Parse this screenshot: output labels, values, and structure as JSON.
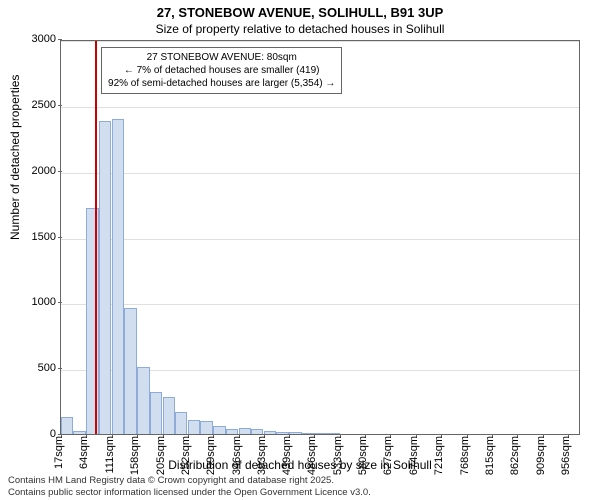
{
  "title_main": "27, STONEBOW AVENUE, SOLIHULL, B91 3UP",
  "title_sub": "Size of property relative to detached houses in Solihull",
  "y_axis_label": "Number of detached properties",
  "x_axis_label": "Distribution of detached houses by size in Solihull",
  "footer_line1": "Contains HM Land Registry data © Crown copyright and database right 2025.",
  "footer_line2": "Contains public sector information licensed under the Open Government Licence v3.0.",
  "annotation": {
    "line1": "27 STONEBOW AVENUE: 80sqm",
    "line2": "← 7% of detached houses are smaller (419)",
    "line3": "92% of semi-detached houses are larger (5,354) →"
  },
  "chart": {
    "type": "histogram",
    "ylim": [
      0,
      3000
    ],
    "ytick_step": 500,
    "yticks": [
      0,
      500,
      1000,
      1500,
      2000,
      2500,
      3000
    ],
    "x_min": 17,
    "x_max": 980,
    "xticks": [
      17,
      64,
      111,
      158,
      205,
      252,
      299,
      346,
      393,
      439,
      486,
      533,
      580,
      627,
      674,
      721,
      768,
      815,
      862,
      909,
      956
    ],
    "xtick_suffix": "sqm",
    "bars": [
      {
        "x": 17,
        "value": 130
      },
      {
        "x": 40,
        "value": 20
      },
      {
        "x": 64,
        "value": 1720
      },
      {
        "x": 87,
        "value": 2380
      },
      {
        "x": 111,
        "value": 2390
      },
      {
        "x": 134,
        "value": 960
      },
      {
        "x": 158,
        "value": 510
      },
      {
        "x": 181,
        "value": 320
      },
      {
        "x": 205,
        "value": 280
      },
      {
        "x": 228,
        "value": 170
      },
      {
        "x": 252,
        "value": 110
      },
      {
        "x": 275,
        "value": 100
      },
      {
        "x": 299,
        "value": 60
      },
      {
        "x": 322,
        "value": 40
      },
      {
        "x": 346,
        "value": 45
      },
      {
        "x": 369,
        "value": 40
      },
      {
        "x": 393,
        "value": 25
      },
      {
        "x": 416,
        "value": 15
      },
      {
        "x": 440,
        "value": 15
      },
      {
        "x": 463,
        "value": 8
      },
      {
        "x": 486,
        "value": 5
      },
      {
        "x": 510,
        "value": 5
      }
    ],
    "bar_width_sqm": 23,
    "marker_x": 80,
    "bar_fill": "#d0def0",
    "bar_stroke": "#8facd8",
    "marker_color": "#cc0000",
    "grid_color": "#e0e0e0",
    "background_color": "#ffffff"
  }
}
